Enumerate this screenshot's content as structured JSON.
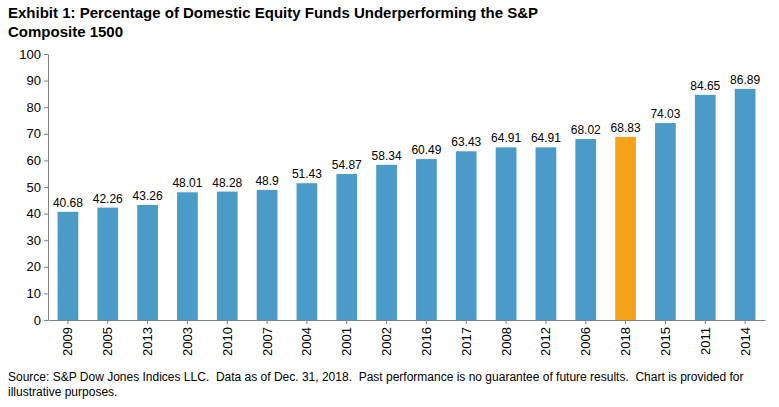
{
  "chart_data": {
    "type": "bar",
    "title": "Exhibit 1: Percentage of Domestic Equity Funds Underperforming the S&P Composite 1500",
    "source": "Source: S&P Dow Jones Indices LLC.  Data as of Dec. 31, 2018.  Past performance is no guarantee of future results.  Chart is provided for illustrative purposes.",
    "categories": [
      "2009",
      "2005",
      "2013",
      "2003",
      "2010",
      "2007",
      "2004",
      "2001",
      "2002",
      "2016",
      "2017",
      "2008",
      "2012",
      "2006",
      "2018",
      "2015",
      "2011",
      "2014"
    ],
    "values": [
      40.68,
      42.26,
      43.26,
      48.01,
      48.28,
      48.9,
      51.43,
      54.87,
      58.34,
      60.49,
      63.43,
      64.91,
      64.91,
      68.02,
      68.83,
      74.03,
      84.65,
      86.89
    ],
    "colors": [
      "#4a9bc7",
      "#4a9bc7",
      "#4a9bc7",
      "#4a9bc7",
      "#4a9bc7",
      "#4a9bc7",
      "#4a9bc7",
      "#4a9bc7",
      "#4a9bc7",
      "#4a9bc7",
      "#4a9bc7",
      "#4a9bc7",
      "#4a9bc7",
      "#4a9bc7",
      "#f7a21b",
      "#4a9bc7",
      "#4a9bc7",
      "#4a9bc7"
    ],
    "ylim": [
      0,
      100
    ],
    "yticks": [
      0,
      10,
      20,
      30,
      40,
      50,
      60,
      70,
      80,
      90,
      100
    ],
    "grid": false,
    "data_labels": true
  }
}
